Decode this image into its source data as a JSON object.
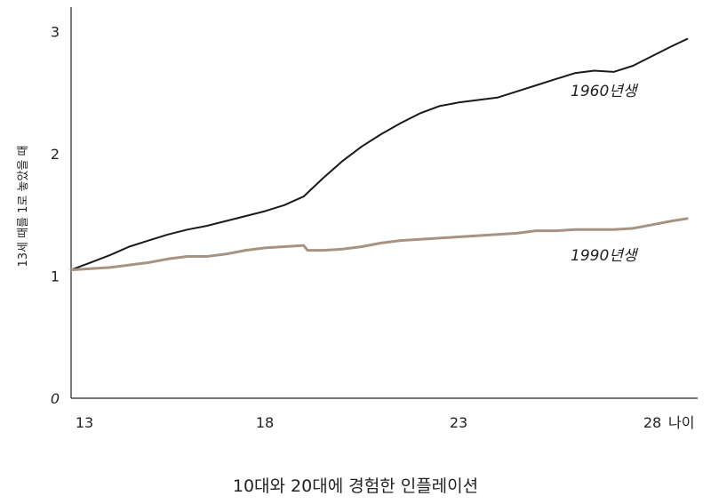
{
  "caption": "10대와 20대에 경험한 인플레이션",
  "chart_data": {
    "type": "line",
    "title": "10대와 20대에 경험한 인플레이션",
    "xlabel": "나이",
    "ylabel": "13세 때를 1로 놓았을 때",
    "xlim": [
      13,
      29
    ],
    "ylim": [
      0,
      3
    ],
    "xticks": [
      13,
      18,
      23,
      28
    ],
    "yticks": [
      0,
      1,
      2,
      3
    ],
    "grid": false,
    "series": [
      {
        "name": "1960년생",
        "color": "#1a1a1a",
        "x": [
          13,
          13.5,
          14,
          14.5,
          15,
          15.5,
          16,
          16.5,
          17,
          17.5,
          18,
          18.5,
          19,
          19.5,
          20,
          20.5,
          21,
          21.5,
          22,
          22.5,
          23,
          23.5,
          24,
          24.5,
          25,
          25.5,
          26,
          26.5,
          27,
          27.5,
          28,
          28.5,
          28.9
        ],
        "y": [
          1.05,
          1.11,
          1.17,
          1.24,
          1.29,
          1.34,
          1.38,
          1.41,
          1.45,
          1.49,
          1.53,
          1.58,
          1.65,
          1.8,
          1.94,
          2.06,
          2.16,
          2.25,
          2.33,
          2.39,
          2.42,
          2.44,
          2.46,
          2.51,
          2.56,
          2.61,
          2.66,
          2.68,
          2.67,
          2.72,
          2.8,
          2.88,
          2.94
        ]
      },
      {
        "name": "1990년생",
        "color": "#a69381",
        "x": [
          13,
          13.5,
          14,
          14.5,
          15,
          15.5,
          16,
          16.5,
          17,
          17.5,
          18,
          18.5,
          19,
          19.1,
          19.5,
          20,
          20.5,
          21,
          21.5,
          22,
          22.5,
          23,
          23.5,
          24,
          24.5,
          25,
          25.5,
          26,
          26.5,
          27,
          27.5,
          28,
          28.5,
          28.9
        ],
        "y": [
          1.05,
          1.06,
          1.07,
          1.09,
          1.11,
          1.14,
          1.16,
          1.16,
          1.18,
          1.21,
          1.23,
          1.24,
          1.25,
          1.21,
          1.21,
          1.22,
          1.24,
          1.27,
          1.29,
          1.3,
          1.31,
          1.32,
          1.33,
          1.34,
          1.35,
          1.37,
          1.37,
          1.38,
          1.38,
          1.38,
          1.39,
          1.42,
          1.45,
          1.47
        ]
      }
    ]
  }
}
